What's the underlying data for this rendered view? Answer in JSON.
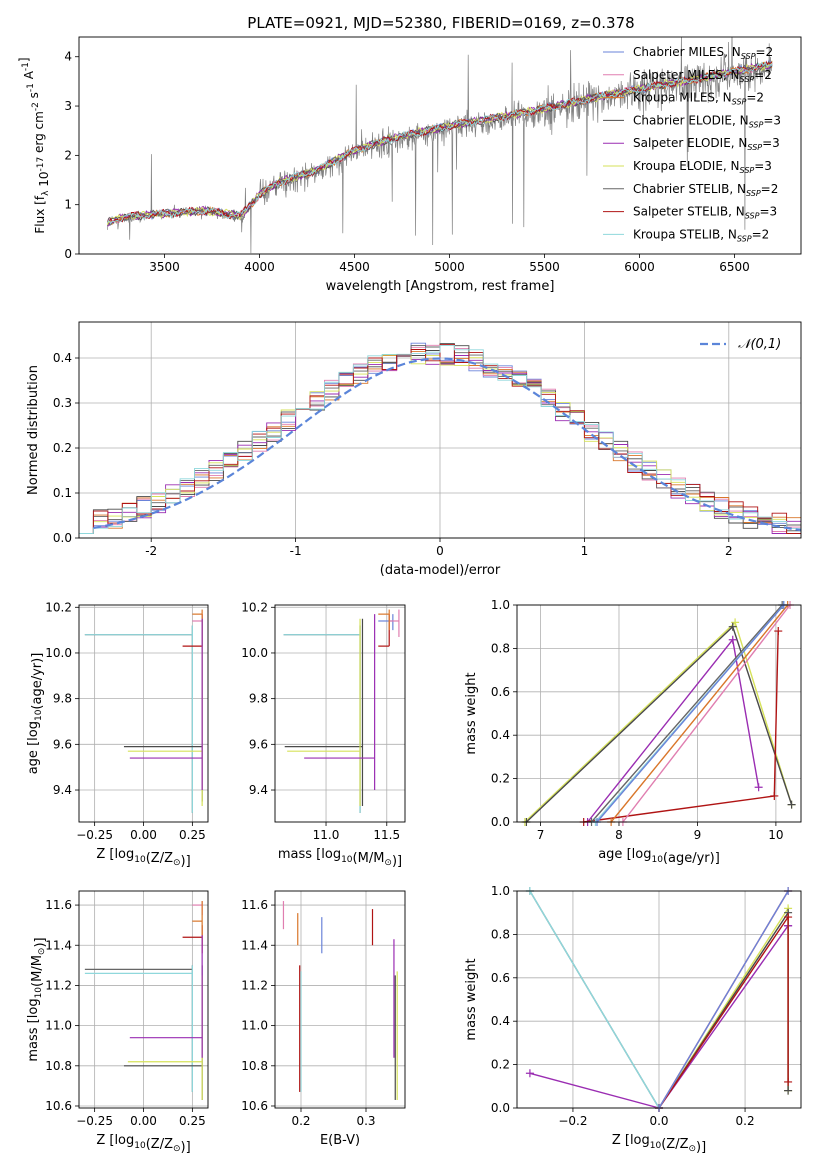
{
  "figure": {
    "title": "PLATE=0921, MJD=52380, FIBERID=0169, z=0.378"
  },
  "series_colors": [
    "#6a83d9",
    "#e07eb0",
    "#d9762a",
    "#4a4a4a",
    "#9a2db2",
    "#d6e25a",
    "#666666",
    "#b01414",
    "#8fd8dc"
  ],
  "chart_data": [
    {
      "id": "spectrum",
      "type": "line",
      "title": "PLATE=0921, MJD=52380, FIBERID=0169, z=0.378",
      "xlabel": "wavelength [Angstrom, rest frame]",
      "ylabel": "Flux [f_λ 10^-17 erg cm^-2 s^-1 A^-1]",
      "xlim": [
        3050,
        6850
      ],
      "ylim": [
        0,
        4.4
      ],
      "xticks": [
        3500,
        4000,
        4500,
        5000,
        5500,
        6000,
        6500
      ],
      "yticks": [
        0,
        1,
        2,
        3,
        4
      ],
      "grid": false,
      "legend": "top-right",
      "data_color": "#808080",
      "observed_continuum": {
        "x": [
          3200,
          3300,
          3500,
          3700,
          3900,
          4000,
          4100,
          4300,
          4500,
          4700,
          5000,
          5300,
          5500,
          5800,
          6000,
          6300,
          6700
        ],
        "y": [
          0.6,
          0.72,
          0.8,
          0.9,
          0.7,
          1.2,
          1.4,
          1.65,
          2.05,
          2.3,
          2.55,
          2.75,
          2.9,
          3.15,
          3.3,
          3.5,
          3.8
        ]
      },
      "model_continuum": {
        "x": [
          3200,
          3300,
          3500,
          3700,
          3900,
          4000,
          4100,
          4300,
          4500,
          4700,
          5000,
          5300,
          5500,
          5800,
          6000,
          6300,
          6700
        ],
        "y": [
          0.65,
          0.76,
          0.82,
          0.88,
          0.78,
          1.2,
          1.45,
          1.7,
          2.1,
          2.35,
          2.6,
          2.8,
          2.95,
          3.2,
          3.35,
          3.55,
          3.85
        ]
      },
      "legend_entries": [
        {
          "name": "Chabrier MILES",
          "nssp": "2"
        },
        {
          "name": "Salpeter MILES",
          "nssp": "2"
        },
        {
          "name": "Kroupa MILES",
          "nssp": "2"
        },
        {
          "name": "Chabrier ELODIE",
          "nssp": "3"
        },
        {
          "name": "Salpeter ELODIE",
          "nssp": "3"
        },
        {
          "name": "Kroupa ELODIE",
          "nssp": "3"
        },
        {
          "name": "Chabrier STELIB",
          "nssp": "2"
        },
        {
          "name": "Salpeter STELIB",
          "nssp": "3"
        },
        {
          "name": "Kroupa STELIB",
          "nssp": "2"
        }
      ]
    },
    {
      "id": "residuals",
      "type": "line",
      "xlabel": "(data-model)/error",
      "ylabel": "Normed distribution",
      "xlim": [
        -2.5,
        2.5
      ],
      "ylim": [
        0,
        0.48
      ],
      "xticks": [
        -2,
        -1,
        0,
        1,
        2
      ],
      "yticks": [
        0.0,
        0.1,
        0.2,
        0.3,
        0.4
      ],
      "grid": true,
      "legend": "top-right",
      "gaussian_label": "𝒩(0,1)",
      "gaussian_color": "#5b85d9",
      "bin_width": 0.1
    },
    {
      "id": "z-age",
      "type": "scatter",
      "xlabel": "Z [log10(Z/Z⊙)]",
      "ylabel": "age [log10(age/yr)]",
      "xlim": [
        -0.33,
        0.33
      ],
      "ylim": [
        9.26,
        10.21
      ],
      "xticks": [
        -0.25,
        0.0,
        0.25
      ],
      "xticklabels": [
        "−0.25",
        "0.00",
        "0.25"
      ],
      "yticks": [
        9.4,
        9.6,
        9.8,
        10.0,
        10.2
      ],
      "grid": true,
      "errorbars": [
        {
          "x": [
            -0.3,
            0.25
          ],
          "y": 10.08,
          "yerr": [
            9.3,
            10.12
          ],
          "color": 6
        },
        {
          "x": [
            -0.3,
            0.25
          ],
          "y": 10.08,
          "yerr": [
            9.3,
            10.12
          ],
          "color": 8
        },
        {
          "x": [
            0.2,
            0.3
          ],
          "y": 10.03,
          "yerr": [
            10.03,
            10.17
          ],
          "color": 7
        },
        {
          "x": [
            0.25,
            0.3
          ],
          "y": 10.14,
          "yerr": [
            10.1,
            10.17
          ],
          "color": 1
        },
        {
          "x": [
            0.25,
            0.3
          ],
          "y": 10.17,
          "yerr": [
            10.1,
            10.19
          ],
          "color": 2
        },
        {
          "x": [
            -0.1,
            0.3
          ],
          "y": 9.59,
          "yerr": [
            9.35,
            10.15
          ],
          "color": 3
        },
        {
          "x": [
            -0.08,
            0.3
          ],
          "y": 9.57,
          "yerr": [
            9.33,
            10.15
          ],
          "color": 5
        },
        {
          "x": [
            -0.07,
            0.3
          ],
          "y": 9.54,
          "yerr": [
            9.4,
            10.15
          ],
          "color": 4
        }
      ]
    },
    {
      "id": "mass-age",
      "type": "scatter",
      "xlabel": "mass [log10(M/M⊙)]",
      "xlim": [
        10.58,
        11.65
      ],
      "ylim": [
        9.26,
        10.21
      ],
      "xticks": [
        11.0,
        11.5
      ],
      "xticklabels": [
        "11.0",
        "11.5"
      ],
      "yticks": [
        9.4,
        9.6,
        9.8,
        10.0,
        10.2
      ],
      "grid": true,
      "errorbars": [
        {
          "x": [
            10.65,
            11.28
          ],
          "y": 10.08,
          "yerr": [
            9.3,
            10.12
          ],
          "color": 6
        },
        {
          "x": [
            10.65,
            11.28
          ],
          "y": 10.08,
          "yerr": [
            9.3,
            10.12
          ],
          "color": 8
        },
        {
          "x": [
            10.66,
            11.3
          ],
          "y": 9.59,
          "yerr": [
            9.33,
            10.15
          ],
          "color": 3
        },
        {
          "x": [
            10.68,
            11.28
          ],
          "y": 9.57,
          "yerr": [
            9.33,
            10.15
          ],
          "color": 5
        },
        {
          "x": [
            10.82,
            11.4
          ],
          "y": 9.54,
          "yerr": [
            9.4,
            10.17
          ],
          "color": 4
        },
        {
          "x": [
            11.43,
            11.52
          ],
          "y": 10.03,
          "yerr": [
            10.03,
            10.17
          ],
          "color": 7
        },
        {
          "x": [
            11.43,
            11.55
          ],
          "y": 10.14,
          "yerr": [
            10.1,
            10.17
          ],
          "color": 0
        },
        {
          "x": [
            11.52,
            11.6
          ],
          "y": 10.14,
          "yerr": [
            10.07,
            10.19
          ],
          "color": 1
        },
        {
          "x": [
            11.43,
            11.52
          ],
          "y": 10.17,
          "yerr": [
            10.1,
            10.19
          ],
          "color": 2
        }
      ]
    },
    {
      "id": "age-weight",
      "type": "line",
      "xlabel": "age [log10(age/yr)]",
      "ylabel": "mass weight",
      "xlim": [
        6.7,
        10.32
      ],
      "ylim": [
        0,
        1.0
      ],
      "xticks": [
        7,
        8,
        9,
        10
      ],
      "yticks": [
        0.0,
        0.2,
        0.4,
        0.6,
        0.8,
        1.0
      ],
      "grid": true,
      "series": [
        {
          "x": [
            6.8,
            9.48,
            10.2
          ],
          "y": [
            0.0,
            0.92,
            0.08
          ],
          "color": 5
        },
        {
          "x": [
            6.82,
            9.45,
            10.2
          ],
          "y": [
            0.0,
            0.9,
            0.08
          ],
          "color": 3
        },
        {
          "x": [
            7.6,
            9.45,
            9.78
          ],
          "y": [
            0.0,
            0.84,
            0.16
          ],
          "color": 4
        },
        {
          "x": [
            7.55,
            9.98,
            10.03
          ],
          "y": [
            0.0,
            0.12,
            0.88
          ],
          "color": 7
        },
        {
          "x": [
            7.65,
            10.08
          ],
          "y": [
            0.0,
            1.0
          ],
          "color": 6
        },
        {
          "x": [
            7.7,
            10.1
          ],
          "y": [
            0.0,
            1.0
          ],
          "color": 8
        },
        {
          "x": [
            7.9,
            10.15
          ],
          "y": [
            0.0,
            1.0
          ],
          "color": 2
        },
        {
          "x": [
            8.05,
            10.18
          ],
          "y": [
            0.0,
            1.0
          ],
          "color": 1
        },
        {
          "x": [
            7.72,
            10.1
          ],
          "y": [
            0.0,
            1.0
          ],
          "color": 0
        }
      ]
    },
    {
      "id": "z-mass",
      "type": "scatter",
      "xlabel": "Z [log10(Z/Z⊙)]",
      "ylabel": "mass [log10(M/M⊙)]",
      "xlim": [
        -0.33,
        0.33
      ],
      "ylim": [
        10.59,
        11.67
      ],
      "xticks": [
        -0.25,
        0.0,
        0.25
      ],
      "xticklabels": [
        "−0.25",
        "0.00",
        "0.25"
      ],
      "yticks": [
        10.6,
        10.8,
        11.0,
        11.2,
        11.4,
        11.6
      ],
      "grid": true,
      "errorbars": [
        {
          "x": [
            -0.3,
            0.25
          ],
          "y": 11.28,
          "yerr": [
            10.67,
            11.3
          ],
          "color": 6
        },
        {
          "x": [
            -0.3,
            0.25
          ],
          "y": 11.26,
          "yerr": [
            10.67,
            11.3
          ],
          "color": 8
        },
        {
          "x": [
            0.2,
            0.3
          ],
          "y": 11.44,
          "yerr": [
            11.36,
            11.5
          ],
          "color": 7
        },
        {
          "x": [
            0.25,
            0.3
          ],
          "y": 11.6,
          "yerr": [
            11.55,
            11.62
          ],
          "color": 1
        },
        {
          "x": [
            0.25,
            0.3
          ],
          "y": 11.52,
          "yerr": [
            11.4,
            11.62
          ],
          "color": 2
        },
        {
          "x": [
            -0.1,
            0.3
          ],
          "y": 10.8,
          "yerr": [
            10.63,
            11.3
          ],
          "color": 3
        },
        {
          "x": [
            -0.08,
            0.3
          ],
          "y": 10.82,
          "yerr": [
            10.63,
            11.25
          ],
          "color": 5
        },
        {
          "x": [
            -0.07,
            0.3
          ],
          "y": 10.94,
          "yerr": [
            10.84,
            11.45
          ],
          "color": 4
        }
      ]
    },
    {
      "id": "ebv-mass",
      "type": "scatter",
      "xlabel": "E(B-V)",
      "xlim": [
        0.16,
        0.36
      ],
      "ylim": [
        10.59,
        11.67
      ],
      "xticks": [
        0.2,
        0.3
      ],
      "xticklabels": [
        "0.2",
        "0.3"
      ],
      "yticks": [
        10.6,
        10.8,
        11.0,
        11.2,
        11.4,
        11.6
      ],
      "grid": true,
      "errorbars": [
        {
          "x": 0.173,
          "yerr": [
            11.48,
            11.62
          ],
          "color": 1
        },
        {
          "x": 0.195,
          "yerr": [
            11.4,
            11.56
          ],
          "color": 2
        },
        {
          "x": 0.198,
          "yerr": [
            10.67,
            11.3
          ],
          "color": 7
        },
        {
          "x": 0.2,
          "yerr": [
            10.67,
            11.27
          ],
          "color": 8
        },
        {
          "x": 0.232,
          "yerr": [
            11.36,
            11.54
          ],
          "color": 0
        },
        {
          "x": 0.31,
          "yerr": [
            11.4,
            11.58
          ],
          "color": 7
        },
        {
          "x": 0.343,
          "yerr": [
            10.84,
            11.43
          ],
          "color": 4
        },
        {
          "x": 0.345,
          "yerr": [
            10.63,
            11.25
          ],
          "color": 3
        },
        {
          "x": 0.348,
          "yerr": [
            10.63,
            11.27
          ],
          "color": 5
        }
      ]
    },
    {
      "id": "z-weight",
      "type": "line",
      "xlabel": "Z [log10(Z/Z⊙)]",
      "ylabel": "mass weight",
      "xlim": [
        -0.33,
        0.33
      ],
      "ylim": [
        0,
        1.0
      ],
      "xticks": [
        -0.2,
        0.0,
        0.2
      ],
      "xticklabels": [
        "−0.2",
        "0.0",
        "0.2"
      ],
      "yticks": [
        0.0,
        0.2,
        0.4,
        0.6,
        0.8,
        1.0
      ],
      "grid": true,
      "series": [
        {
          "x": [
            -0.3,
            0.0
          ],
          "y": [
            1.0,
            0.0
          ],
          "color": 6
        },
        {
          "x": [
            -0.3,
            0.0
          ],
          "y": [
            1.0,
            0.0
          ],
          "color": 8
        },
        {
          "x": [
            -0.3,
            0.0,
            0.3,
            0.3
          ],
          "y": [
            0.16,
            0.0,
            0.84,
            0.84
          ],
          "color": 4
        },
        {
          "x": [
            0.0,
            0.3,
            0.3
          ],
          "y": [
            0.0,
            0.92,
            0.08
          ],
          "color": 5
        },
        {
          "x": [
            0.0,
            0.3,
            0.3
          ],
          "y": [
            0.0,
            0.9,
            0.08
          ],
          "color": 3
        },
        {
          "x": [
            0.0,
            0.3,
            0.3
          ],
          "y": [
            0.0,
            0.88,
            0.12
          ],
          "color": 7
        },
        {
          "x": [
            0.0,
            0.3
          ],
          "y": [
            0.0,
            1.0
          ],
          "color": 2
        },
        {
          "x": [
            0.0,
            0.3
          ],
          "y": [
            0.0,
            1.0
          ],
          "color": 1
        },
        {
          "x": [
            0.0,
            0.3
          ],
          "y": [
            0.0,
            1.0
          ],
          "color": 0
        }
      ]
    }
  ]
}
